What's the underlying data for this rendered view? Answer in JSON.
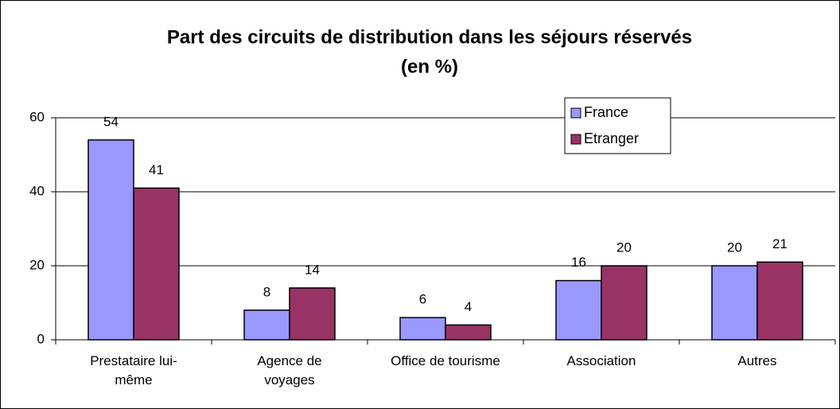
{
  "chart_data": {
    "type": "bar",
    "title": [
      "Part des circuits de distribution dans les séjours réservés",
      "(en %)"
    ],
    "categories": [
      "Prestataire lui-même",
      "Agence de voyages",
      "Office de tourisme",
      "Association",
      "Autres"
    ],
    "series": [
      {
        "name": "France",
        "color": "#9999ff",
        "values": [
          54,
          8,
          6,
          16,
          20
        ]
      },
      {
        "name": "Etranger",
        "color": "#993366",
        "values": [
          41,
          14,
          4,
          20,
          21
        ]
      }
    ],
    "ylim": [
      0,
      60
    ],
    "yticks": [
      0,
      20,
      40,
      60
    ],
    "grid": true,
    "legend": "top-right"
  }
}
